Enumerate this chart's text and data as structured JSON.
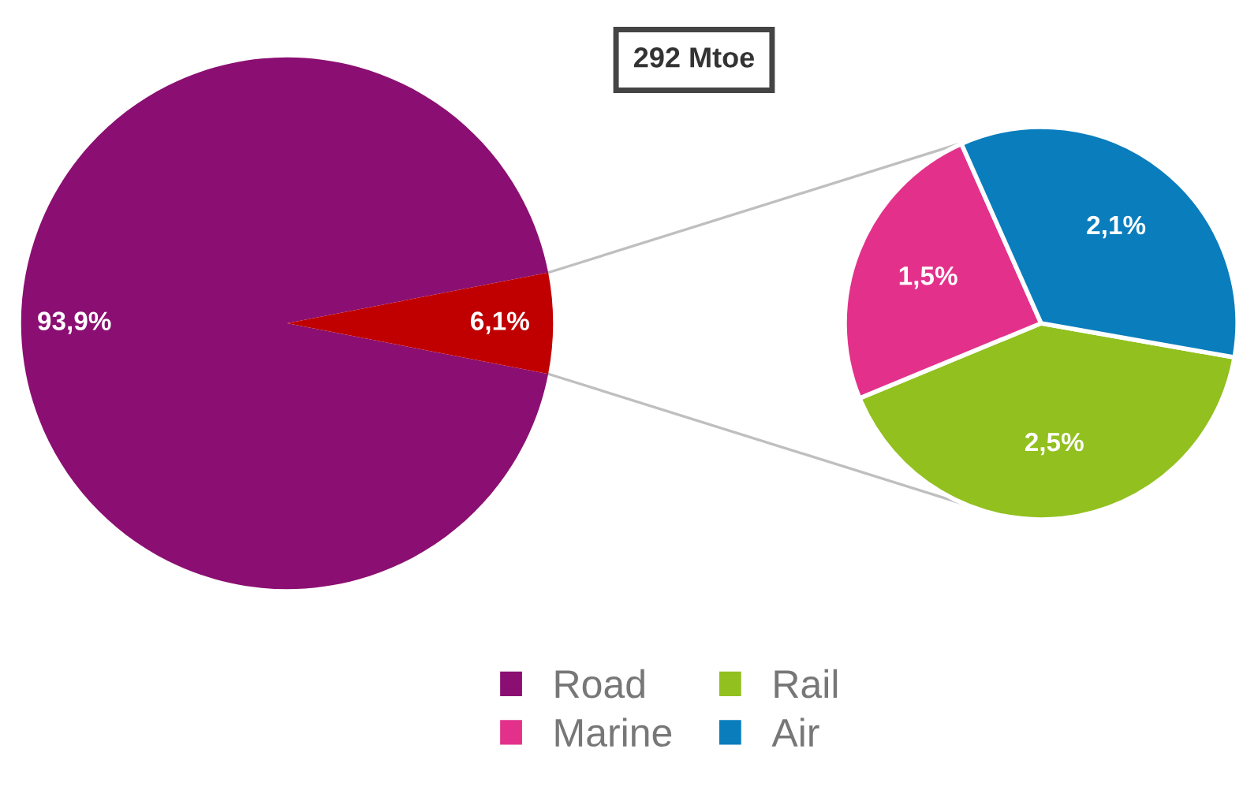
{
  "chart_data": [
    {
      "type": "pie",
      "title": "292 Mtoe",
      "categories": [
        "Road",
        null
      ],
      "values": [
        93.9,
        6.1
      ],
      "colors": [
        "#8b0f72",
        "#c00000"
      ],
      "value_labels": [
        "93,9%",
        "6,1%"
      ],
      "legend": "bottom"
    },
    {
      "type": "pie",
      "categories": [
        "Rail",
        "Marine",
        "Air"
      ],
      "values": [
        2.5,
        1.5,
        2.1
      ],
      "colors": [
        "#92c01f",
        "#e3318b",
        "#0a7dbd"
      ],
      "value_labels": [
        "2,5%",
        "1,5%",
        "2,1%"
      ],
      "legend": "bottom"
    }
  ]
}
